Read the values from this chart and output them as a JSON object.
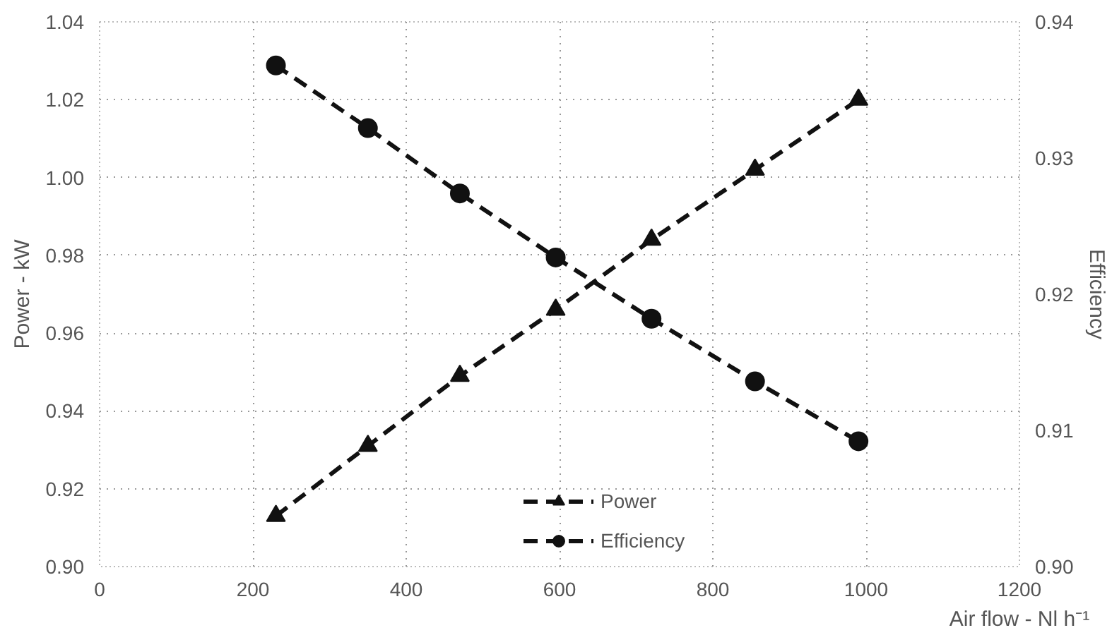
{
  "chart_data": {
    "type": "line",
    "xlabel": "Air flow - Nl h⁻¹",
    "ylabel": "Power - kW",
    "y2label": "Efficiency",
    "x": [
      230,
      350,
      470,
      595,
      720,
      855,
      990
    ],
    "series": [
      {
        "name": "Power",
        "color": "#111111",
        "marker": "triangle",
        "values": [
          0.913,
          0.931,
          0.949,
          0.966,
          0.984,
          1.002,
          1.02
        ]
      },
      {
        "name": "Efficiency",
        "color": "#111111",
        "marker": "circle",
        "axis": "y2",
        "values": [
          0.9368,
          0.9322,
          0.9274,
          0.9227,
          0.9182,
          0.9136,
          0.9092
        ]
      }
    ],
    "xlim": [
      0,
      1200
    ],
    "xticks": [
      0,
      200,
      400,
      600,
      800,
      1000,
      1200
    ],
    "ylim": [
      0.9,
      1.04
    ],
    "yticks": [
      {
        "value": 0.9,
        "label": "0.90"
      },
      0.92,
      0.94,
      0.96,
      0.98,
      {
        "value": 1.0,
        "label": "1.00"
      },
      1.02,
      1.04
    ],
    "y2lim": [
      0.9,
      0.94
    ],
    "y2ticks": [
      {
        "value": 0.9,
        "label": "0.90"
      },
      0.91,
      0.92,
      0.93,
      0.94
    ],
    "grid": true,
    "legend": "bottom",
    "line_style": "dashed"
  }
}
